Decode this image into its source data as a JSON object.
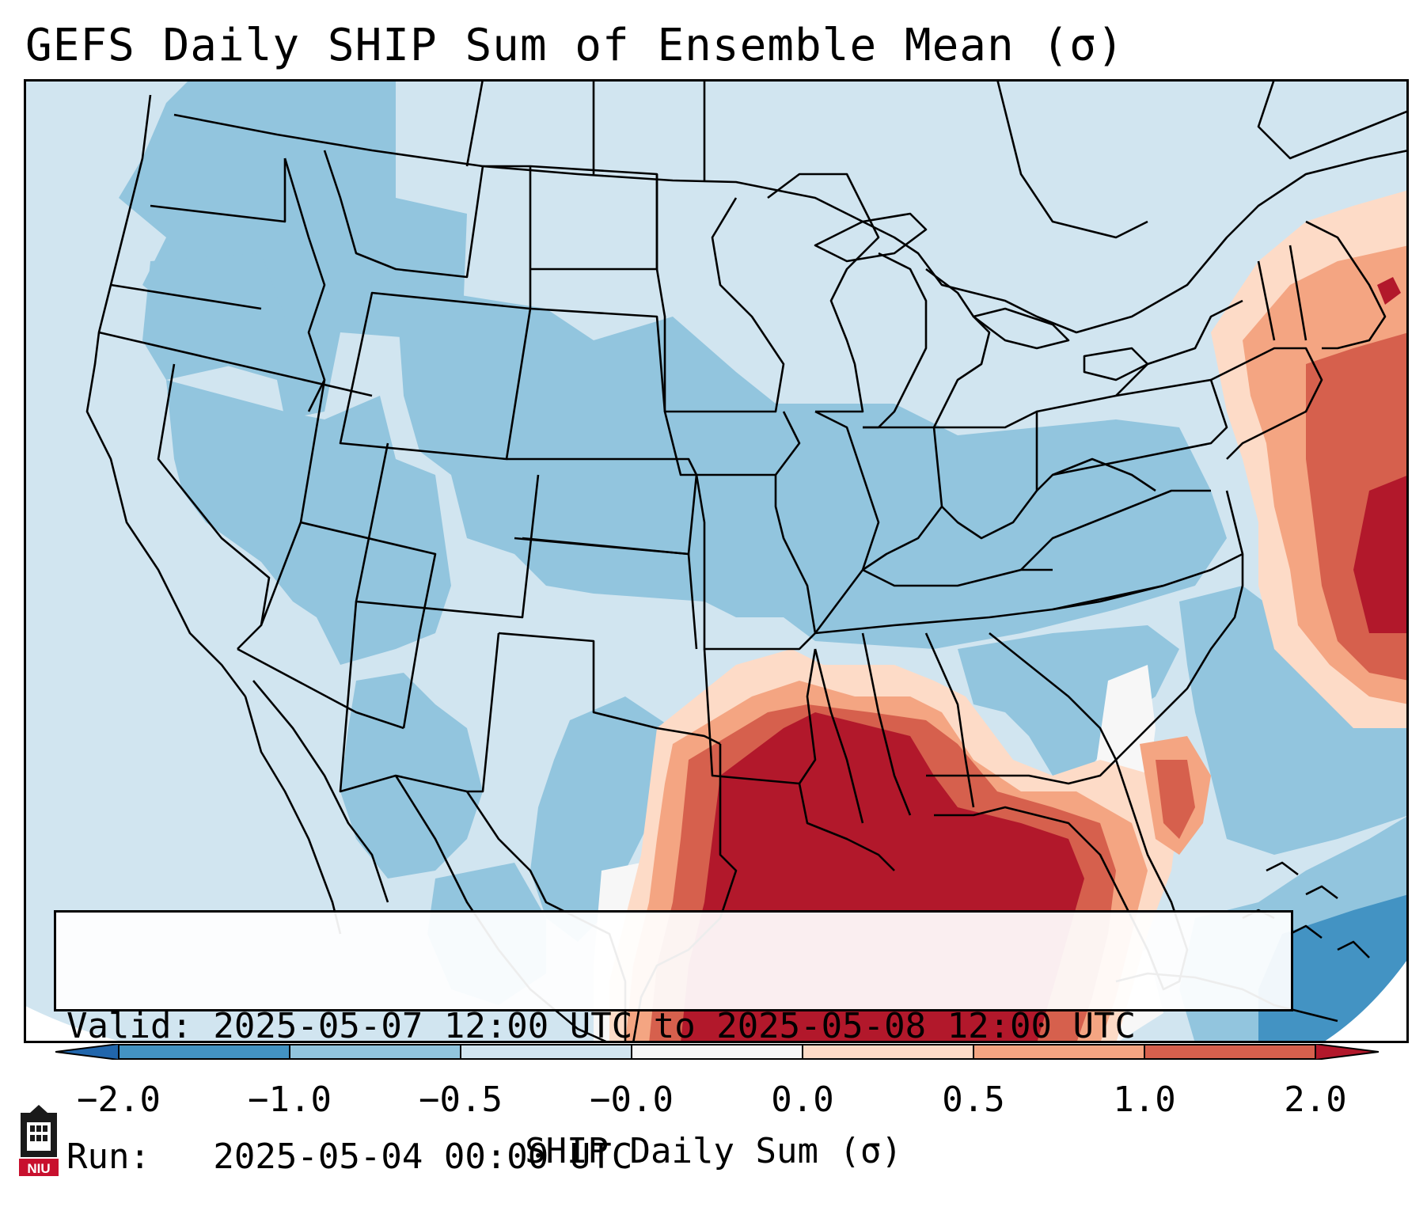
{
  "title": "GEFS Daily SHIP Sum of Ensemble Mean (σ)",
  "info": {
    "valid_line": "Valid: 2025-05-07 12:00 UTC to 2025-05-08 12:00 UTC",
    "run_line": "Run:   2025-05-04 00:00 UTC"
  },
  "colorbar": {
    "label": "SHIP Daily Sum (σ)",
    "tick_labels": [
      "−2.0",
      "−1.0",
      "−0.5",
      "−0.0",
      "0.0",
      "0.5",
      "1.0",
      "2.0"
    ],
    "segment_colors": [
      "#4393c3",
      "#92c5de",
      "#d1e5f0",
      "#f7f7f7",
      "#fddbc7",
      "#f4a582",
      "#d6604d",
      "#b2182b"
    ],
    "extend_low_color": "#2166ac",
    "extend_high_color": "#b2182b"
  },
  "map": {
    "projection": "Lambert Conformal (CONUS)",
    "background_color": "#d1e5f0",
    "border_color": "#000000"
  },
  "logo": {
    "text": "NIU",
    "icon": "niu-logo-icon"
  }
}
